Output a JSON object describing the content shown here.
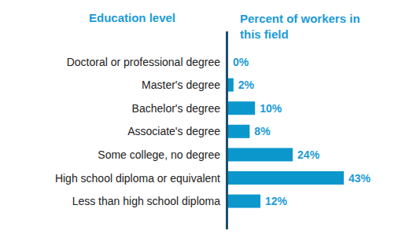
{
  "chart_data": {
    "type": "bar",
    "orientation": "horizontal",
    "ylabel": "Education level",
    "xlabel": "Percent of workers in this field",
    "categories": [
      "Doctoral or professional degree",
      "Master's degree",
      "Bachelor's degree",
      "Associate's degree",
      "Some college, no degree",
      "High school diploma or equivalent",
      "Less than high school diploma"
    ],
    "values": [
      0,
      2,
      10,
      8,
      24,
      43,
      12
    ],
    "value_labels": [
      "0%",
      "2%",
      "10%",
      "8%",
      "24%",
      "43%",
      "12%"
    ],
    "color": "#0c97cc",
    "xlim": [
      0,
      50
    ],
    "data_labels": true,
    "tick_labels": false,
    "grid": false
  }
}
